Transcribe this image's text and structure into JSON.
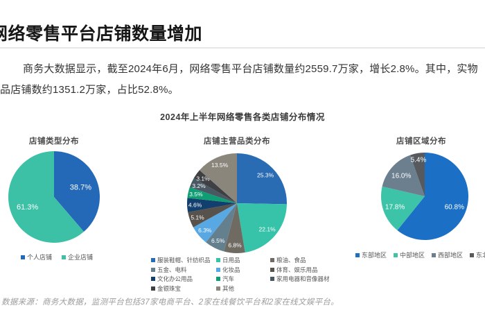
{
  "page": {
    "title": "网络零售平台店铺数量增加",
    "intro_line1": "商务大数据显示，截至2024年6月，网络零售平台店铺数量约2559.7万家，增长2.8%。其中，实物",
    "intro_line2": "品店铺数约1351.2万家，占比52.8%。",
    "source_note": "数据来源：商务大数据，监测平台包括37家电商平台、2家在线餐饮平台和2家在线文娱平台。"
  },
  "chart_data": {
    "main_title": "2024年上半年网络零售各类店铺分布情况",
    "unit": "%",
    "charts": [
      {
        "type": "pie",
        "title": "店铺类型分布",
        "legend_position": "bottom",
        "slices": [
          {
            "label": "个人店铺",
            "value": 38.7,
            "color": "#2468b8"
          },
          {
            "label": "企业店铺",
            "value": 61.3,
            "color": "#3cc0a6"
          }
        ]
      },
      {
        "type": "pie",
        "title": "店铺主营品类分布",
        "legend_position": "bottom",
        "slices": [
          {
            "label": "服装鞋帽、针纺织品",
            "value": 25.3,
            "color": "#2a6cb4"
          },
          {
            "label": "日用品",
            "value": 22.1,
            "color": "#36c3a9"
          },
          {
            "label": "粮油、食品",
            "value": 6.8,
            "color": "#6f6a62"
          },
          {
            "label": "五金、电料",
            "value": 6.5,
            "color": "#64808f"
          },
          {
            "label": "化妆品",
            "value": 6.3,
            "color": "#58a8e4"
          },
          {
            "label": "体育、娱乐用品",
            "value": 5.1,
            "color": "#57524c"
          },
          {
            "label": "文化办公用品",
            "value": 4.6,
            "color": "#123f6d"
          },
          {
            "label": "汽车",
            "value": 3.5,
            "color": "#0f9e73"
          },
          {
            "label": "家用电器和音像器材",
            "value": 3.2,
            "color": "#495964"
          },
          {
            "label": "金银珠宝",
            "value": 3.1,
            "color": "#3e4043"
          },
          {
            "label": "其他",
            "value": 13.5,
            "color": "#8b867c"
          }
        ],
        "legend_columns": [
          [
            "服装鞋帽、针纺织品",
            "五金、电料",
            "文化办公用品",
            "金银珠宝"
          ],
          [
            "日用品",
            "化妆品",
            "汽车",
            "其他"
          ],
          [
            "粮油、食品",
            "体育、娱乐用品",
            "家用电器和音像器材"
          ]
        ]
      },
      {
        "type": "pie",
        "title": "店铺区域分布",
        "legend_position": "bottom",
        "slices": [
          {
            "label": "东部地区",
            "value": 60.8,
            "color": "#1b6fc4"
          },
          {
            "label": "中部地区",
            "value": 17.8,
            "color": "#3cc3a8"
          },
          {
            "label": "西部地区",
            "value": 16.0,
            "color": "#6b7f8e"
          },
          {
            "label": "东北地区",
            "value": 5.4,
            "color": "#565a5e"
          }
        ]
      }
    ]
  }
}
